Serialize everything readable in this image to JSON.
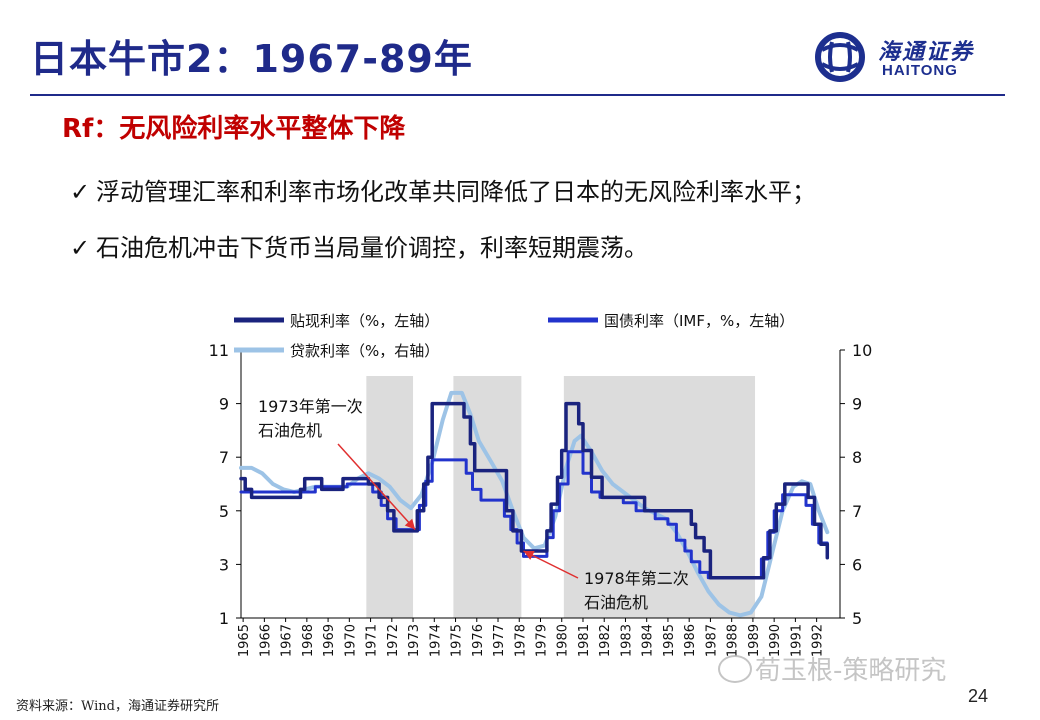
{
  "slide": {
    "title": "日本牛市2：1967-89年",
    "subtitle": "Rf：无风险利率水平整体下降",
    "bullets": [
      "浮动管理汇率和利率市场化改革共同降低了日本的无风险利率水平；",
      "石油危机冲击下货币当局量价调控，利率短期震荡。"
    ],
    "check_icon": "check-icon",
    "source": "资料来源：Wind，海通证券研究所",
    "page_number": "24",
    "watermark": "荀玉根-策略研究",
    "logo": {
      "cn": "海通证券",
      "en": "HAITONG"
    },
    "colors": {
      "title": "#1f2a8a",
      "subtitle": "#c00000",
      "rule": "#1f2a8a"
    }
  },
  "chart_data": {
    "type": "line",
    "x_tick_labels": [
      "1965",
      "1966",
      "1967",
      "1968",
      "1969",
      "1970",
      "1971",
      "1972",
      "1973",
      "1974",
      "1975",
      "1976",
      "1977",
      "1978",
      "1979",
      "1980",
      "1981",
      "1982",
      "1983",
      "1984",
      "1985",
      "1986",
      "1987",
      "1988",
      "1989",
      "1990",
      "1991",
      "1992"
    ],
    "left_axis": {
      "ticks": [
        "1",
        "3",
        "5",
        "7",
        "9",
        "11"
      ],
      "range": [
        1,
        11
      ]
    },
    "right_axis": {
      "ticks": [
        "5",
        "6",
        "7",
        "8",
        "9",
        "10"
      ],
      "range": [
        5,
        10
      ]
    },
    "x_range": [
      1965,
      1993.2
    ],
    "shaded_periods": [
      [
        1970.9,
        1973.1
      ],
      [
        1975.0,
        1978.2
      ],
      [
        1980.2,
        1989.2
      ]
    ],
    "series": [
      {
        "name": "贴现利率（%，左轴）",
        "axis": "left",
        "color": "#1a237e",
        "width": 3.5,
        "step": true,
        "points": [
          [
            1965,
            6.2
          ],
          [
            1965.2,
            5.8
          ],
          [
            1965.5,
            5.5
          ],
          [
            1967.7,
            5.5
          ],
          [
            1967.8,
            5.8
          ],
          [
            1968,
            6.2
          ],
          [
            1968.6,
            6.2
          ],
          [
            1968.8,
            5.8
          ],
          [
            1969.6,
            5.8
          ],
          [
            1969.8,
            6.2
          ],
          [
            1970.8,
            6.2
          ],
          [
            1971.0,
            6.0
          ],
          [
            1971.5,
            5.5
          ],
          [
            1971.9,
            5.0
          ],
          [
            1972.2,
            4.25
          ],
          [
            1973.1,
            4.25
          ],
          [
            1973.3,
            5.0
          ],
          [
            1973.6,
            6.0
          ],
          [
            1973.8,
            7.0
          ],
          [
            1974.0,
            9.0
          ],
          [
            1975.3,
            9.0
          ],
          [
            1975.5,
            8.5
          ],
          [
            1975.8,
            7.5
          ],
          [
            1976.0,
            6.5
          ],
          [
            1977.3,
            6.5
          ],
          [
            1977.5,
            5.0
          ],
          [
            1977.8,
            4.25
          ],
          [
            1978.2,
            3.5
          ],
          [
            1979.2,
            3.5
          ],
          [
            1979.4,
            4.25
          ],
          [
            1979.6,
            5.25
          ],
          [
            1979.9,
            6.25
          ],
          [
            1980.1,
            7.25
          ],
          [
            1980.3,
            9.0
          ],
          [
            1980.7,
            9.0
          ],
          [
            1980.9,
            8.25
          ],
          [
            1981.1,
            7.25
          ],
          [
            1981.5,
            6.25
          ],
          [
            1982.0,
            5.5
          ],
          [
            1983.8,
            5.5
          ],
          [
            1984.0,
            5.0
          ],
          [
            1986.0,
            5.0
          ],
          [
            1986.2,
            4.5
          ],
          [
            1986.4,
            4.0
          ],
          [
            1986.8,
            3.5
          ],
          [
            1987.1,
            2.5
          ],
          [
            1989.4,
            2.5
          ],
          [
            1989.6,
            3.25
          ],
          [
            1989.9,
            4.25
          ],
          [
            1990.2,
            5.25
          ],
          [
            1990.6,
            6.0
          ],
          [
            1991.5,
            6.0
          ],
          [
            1991.7,
            5.5
          ],
          [
            1992.0,
            4.5
          ],
          [
            1992.3,
            3.75
          ],
          [
            1992.6,
            3.25
          ]
        ]
      },
      {
        "name": "国债利率（IMF，%，左轴）",
        "axis": "left",
        "color": "#2233cc",
        "width": 3,
        "step": true,
        "points": [
          [
            1965,
            5.7
          ],
          [
            1965.5,
            5.7
          ],
          [
            1968,
            5.7
          ],
          [
            1968.5,
            5.9
          ],
          [
            1969.5,
            5.9
          ],
          [
            1970.0,
            6.0
          ],
          [
            1970.9,
            6.0
          ],
          [
            1971.2,
            5.7
          ],
          [
            1971.6,
            5.2
          ],
          [
            1971.9,
            4.7
          ],
          [
            1972.3,
            4.3
          ],
          [
            1973.2,
            4.3
          ],
          [
            1973.4,
            5.2
          ],
          [
            1973.7,
            6.1
          ],
          [
            1974.0,
            6.9
          ],
          [
            1975.4,
            6.9
          ],
          [
            1975.6,
            6.4
          ],
          [
            1975.9,
            5.8
          ],
          [
            1976.3,
            5.4
          ],
          [
            1977.2,
            5.4
          ],
          [
            1977.4,
            4.8
          ],
          [
            1977.7,
            4.3
          ],
          [
            1978.0,
            3.8
          ],
          [
            1978.3,
            3.3
          ],
          [
            1979.1,
            3.3
          ],
          [
            1979.4,
            4.0
          ],
          [
            1979.7,
            5.0
          ],
          [
            1980.0,
            6.0
          ],
          [
            1980.4,
            7.2
          ],
          [
            1980.9,
            7.2
          ],
          [
            1981.1,
            6.4
          ],
          [
            1981.5,
            5.7
          ],
          [
            1981.9,
            5.5
          ],
          [
            1982.5,
            5.5
          ],
          [
            1983.0,
            5.3
          ],
          [
            1983.6,
            5.0
          ],
          [
            1984.5,
            4.7
          ],
          [
            1985.1,
            4.5
          ],
          [
            1985.5,
            3.9
          ],
          [
            1985.9,
            3.5
          ],
          [
            1986.2,
            3.1
          ],
          [
            1986.6,
            2.7
          ],
          [
            1987.0,
            2.5
          ],
          [
            1989.3,
            2.5
          ],
          [
            1989.5,
            3.2
          ],
          [
            1989.8,
            4.2
          ],
          [
            1990.1,
            5.0
          ],
          [
            1990.5,
            5.6
          ],
          [
            1991.3,
            5.6
          ],
          [
            1991.6,
            5.2
          ],
          [
            1991.9,
            4.5
          ],
          [
            1992.2,
            3.8
          ],
          [
            1992.6,
            3.3
          ]
        ]
      },
      {
        "name": "贷款利率（%，右轴）",
        "axis": "right",
        "color": "#9dc3e6",
        "width": 4,
        "step": false,
        "points": [
          [
            1965,
            7.8
          ],
          [
            1965.5,
            7.8
          ],
          [
            1966.0,
            7.7
          ],
          [
            1966.5,
            7.5
          ],
          [
            1967.0,
            7.4
          ],
          [
            1967.5,
            7.35
          ],
          [
            1968.0,
            7.4
          ],
          [
            1968.5,
            7.45
          ],
          [
            1969.0,
            7.45
          ],
          [
            1969.5,
            7.45
          ],
          [
            1970.0,
            7.45
          ],
          [
            1970.5,
            7.6
          ],
          [
            1971.0,
            7.7
          ],
          [
            1971.5,
            7.6
          ],
          [
            1972.0,
            7.45
          ],
          [
            1972.5,
            7.2
          ],
          [
            1973.0,
            7.05
          ],
          [
            1973.5,
            7.3
          ],
          [
            1974.0,
            7.9
          ],
          [
            1974.5,
            8.7
          ],
          [
            1974.9,
            9.2
          ],
          [
            1975.4,
            9.2
          ],
          [
            1975.8,
            8.8
          ],
          [
            1976.2,
            8.3
          ],
          [
            1976.8,
            7.9
          ],
          [
            1977.3,
            7.55
          ],
          [
            1977.8,
            7.0
          ],
          [
            1978.3,
            6.5
          ],
          [
            1978.8,
            6.3
          ],
          [
            1979.3,
            6.35
          ],
          [
            1979.8,
            6.9
          ],
          [
            1980.3,
            7.8
          ],
          [
            1980.7,
            8.3
          ],
          [
            1981.0,
            8.4
          ],
          [
            1981.5,
            8.1
          ],
          [
            1982.0,
            7.75
          ],
          [
            1982.5,
            7.5
          ],
          [
            1983.0,
            7.35
          ],
          [
            1983.5,
            7.2
          ],
          [
            1984.0,
            7.05
          ],
          [
            1984.5,
            6.95
          ],
          [
            1985.0,
            6.85
          ],
          [
            1985.5,
            6.6
          ],
          [
            1986.0,
            6.25
          ],
          [
            1986.5,
            5.85
          ],
          [
            1987.0,
            5.5
          ],
          [
            1987.5,
            5.25
          ],
          [
            1988.0,
            5.1
          ],
          [
            1988.5,
            5.05
          ],
          [
            1989.0,
            5.1
          ],
          [
            1989.5,
            5.4
          ],
          [
            1990.0,
            6.2
          ],
          [
            1990.5,
            7.0
          ],
          [
            1991.0,
            7.45
          ],
          [
            1991.4,
            7.55
          ],
          [
            1991.8,
            7.5
          ],
          [
            1992.2,
            7.0
          ],
          [
            1992.6,
            6.6
          ]
        ]
      }
    ],
    "annotations": [
      {
        "text": "1973年第一次",
        "text2": "石油危机",
        "arrow_to": [
          1973.2,
          4.3
        ]
      },
      {
        "text": "1978年第二次",
        "text2": "石油危机",
        "arrow_to": [
          1978.3,
          3.5
        ]
      }
    ],
    "legend_placement": "top"
  }
}
